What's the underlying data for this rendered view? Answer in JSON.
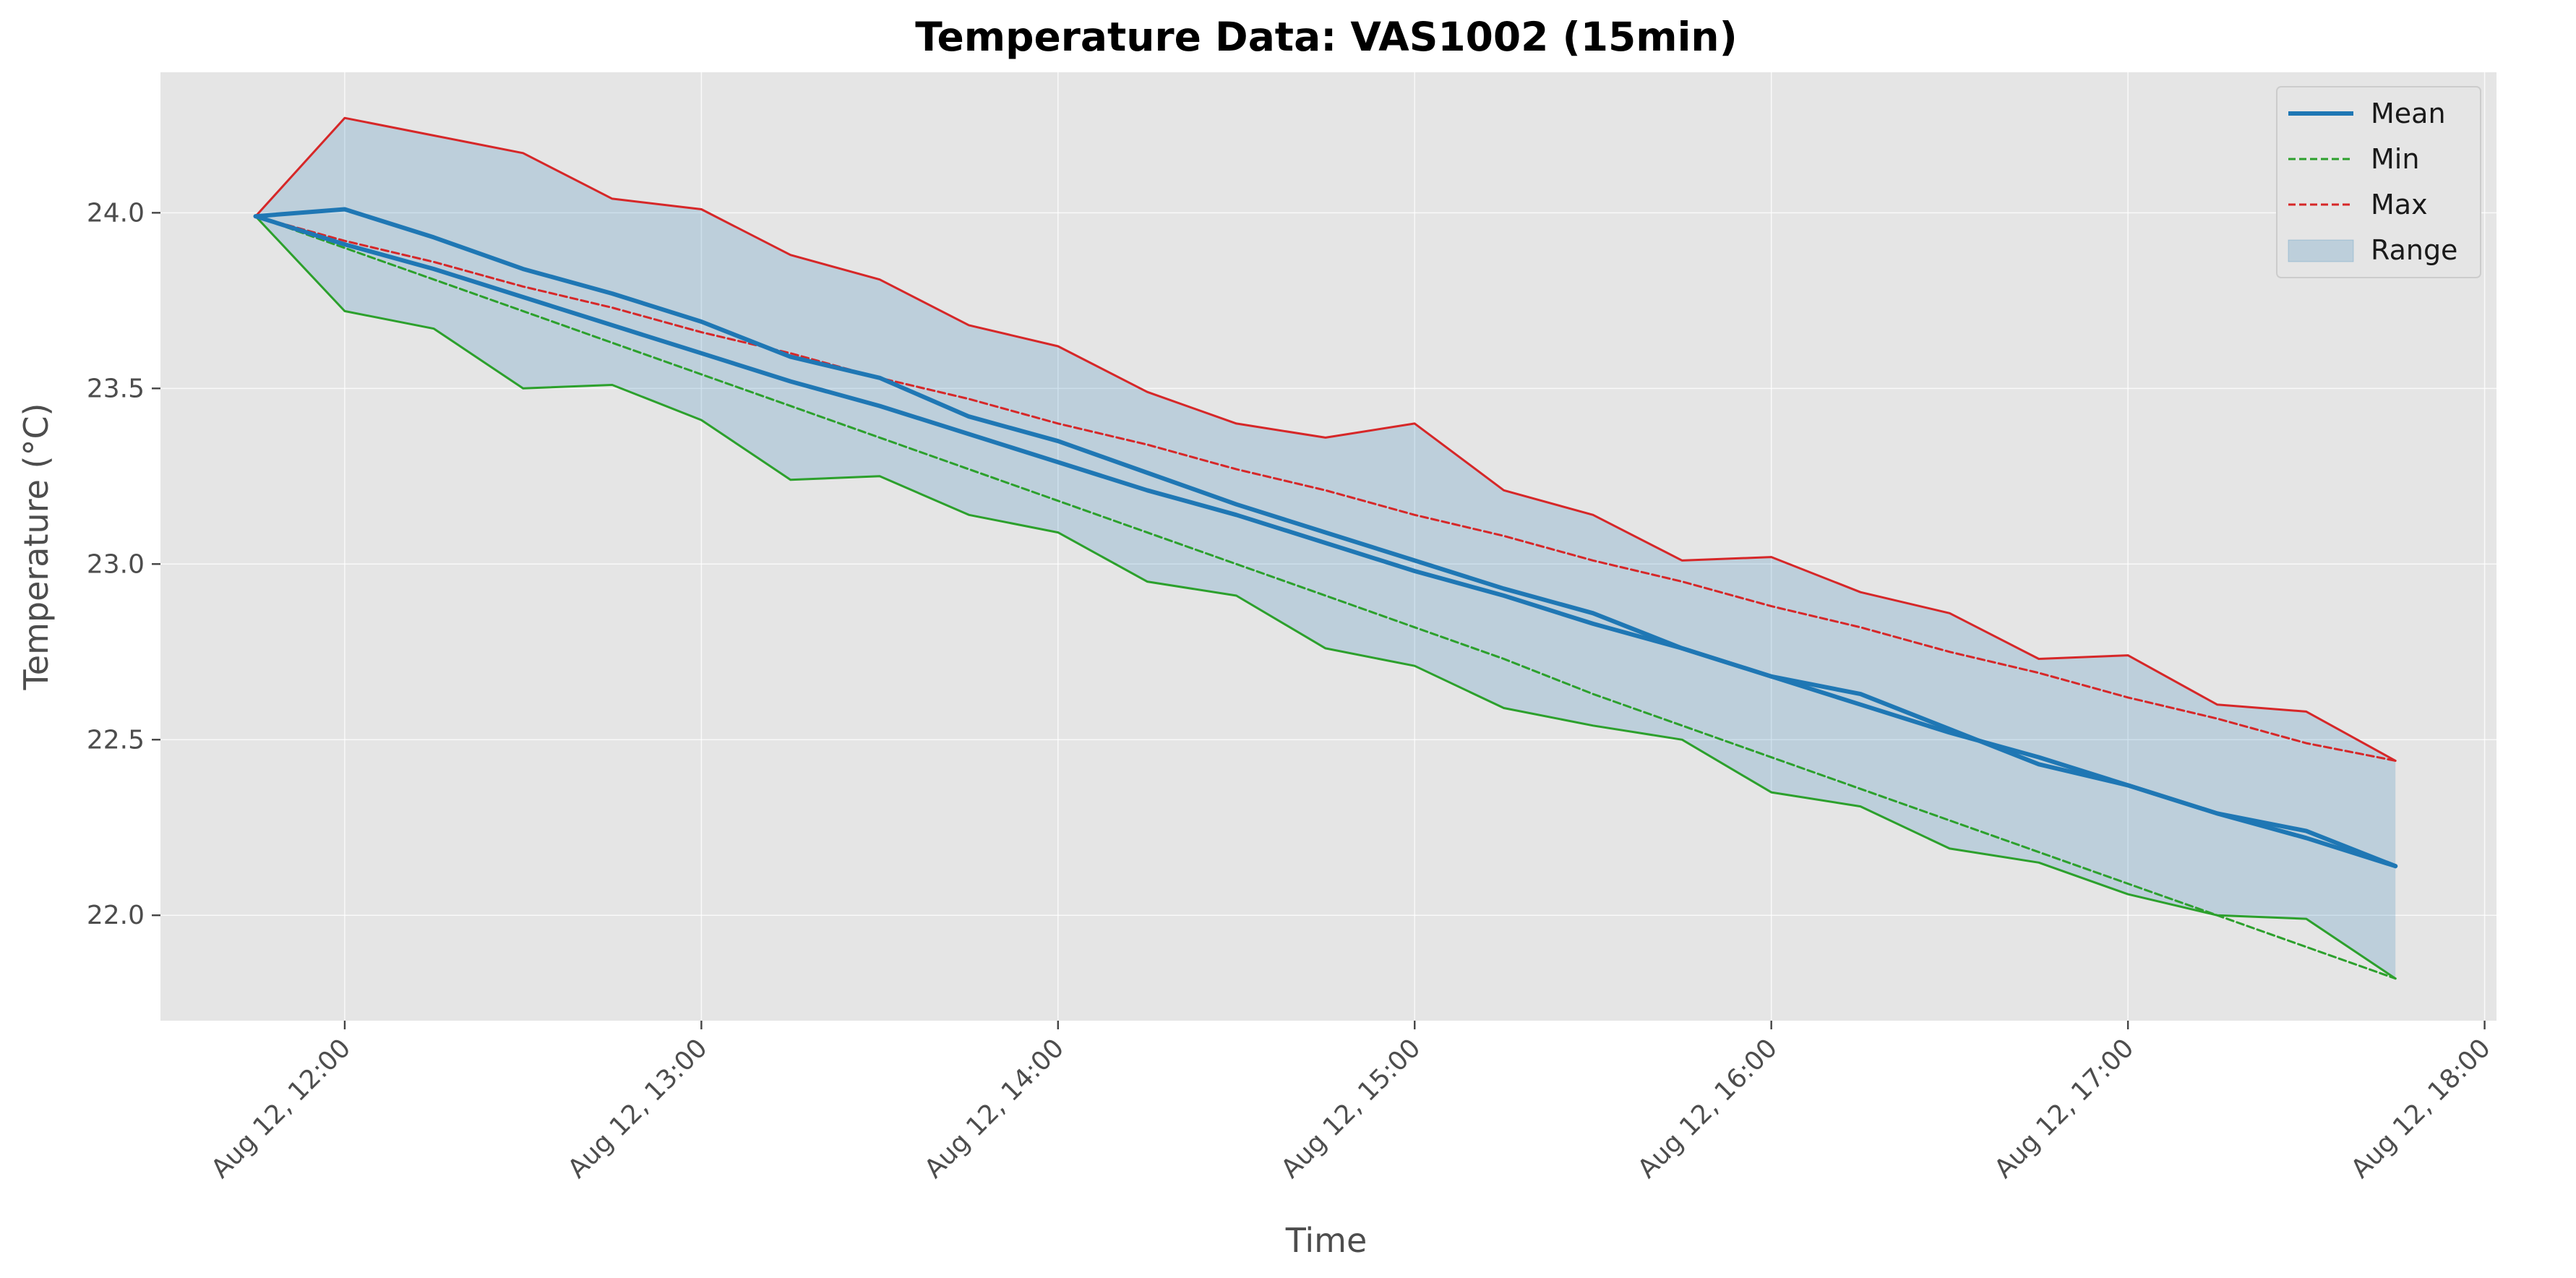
{
  "chart_data": {
    "type": "line",
    "title": "Temperature Data: VAS1002 (15min)",
    "xlabel": "Time",
    "ylabel": "Temperature (°C)",
    "x_ticks": [
      "Aug 12, 12:00",
      "Aug 12, 13:00",
      "Aug 12, 14:00",
      "Aug 12, 15:00",
      "Aug 12, 16:00",
      "Aug 12, 17:00",
      "Aug 12, 18:00"
    ],
    "y_ticks": [
      "22.0",
      "22.5",
      "23.0",
      "23.5",
      "24.0"
    ],
    "xlim": [
      "Aug 12, 11:29",
      "Aug 12, 18:02"
    ],
    "ylim": [
      21.7,
      24.4
    ],
    "grid": true,
    "legend_position": "top-right",
    "x": [
      "Aug 12, 11:45",
      "Aug 12, 12:00",
      "Aug 12, 12:15",
      "Aug 12, 12:30",
      "Aug 12, 12:45",
      "Aug 12, 13:00",
      "Aug 12, 13:15",
      "Aug 12, 13:30",
      "Aug 12, 13:45",
      "Aug 12, 14:00",
      "Aug 12, 14:15",
      "Aug 12, 14:30",
      "Aug 12, 14:45",
      "Aug 12, 15:00",
      "Aug 12, 15:15",
      "Aug 12, 15:30",
      "Aug 12, 15:45",
      "Aug 12, 16:00",
      "Aug 12, 16:15",
      "Aug 12, 16:30",
      "Aug 12, 16:45",
      "Aug 12, 17:00",
      "Aug 12, 17:15",
      "Aug 12, 17:30",
      "Aug 12, 17:45"
    ],
    "series": [
      {
        "name": "Mean",
        "style": "solid",
        "color": "#1f77b4",
        "values": [
          23.99,
          24.01,
          23.93,
          23.84,
          23.77,
          23.69,
          23.59,
          23.53,
          23.42,
          23.35,
          23.26,
          23.17,
          23.09,
          23.01,
          22.93,
          22.86,
          22.76,
          22.68,
          22.63,
          22.53,
          22.43,
          22.37,
          22.29,
          22.24,
          22.14
        ]
      },
      {
        "name": "Mean",
        "style": "solid",
        "color": "#1f77b4",
        "values": [
          23.99,
          23.91,
          23.84,
          23.76,
          23.68,
          23.6,
          23.52,
          23.45,
          23.37,
          23.29,
          23.21,
          23.14,
          23.06,
          22.98,
          22.91,
          22.83,
          22.76,
          22.68,
          22.6,
          22.52,
          22.45,
          22.37,
          22.29,
          22.22,
          22.14
        ]
      },
      {
        "name": "Min",
        "style": "solid",
        "color": "#2ca02c",
        "values": [
          23.99,
          23.72,
          23.67,
          23.5,
          23.51,
          23.41,
          23.24,
          23.25,
          23.14,
          23.09,
          22.95,
          22.91,
          22.76,
          22.71,
          22.59,
          22.54,
          22.5,
          22.35,
          22.31,
          22.19,
          22.15,
          22.06,
          22.0,
          21.99,
          21.82
        ]
      },
      {
        "name": "Min",
        "style": "dashed",
        "color": "#2ca02c",
        "values": [
          23.99,
          23.9,
          23.81,
          23.72,
          23.63,
          23.54,
          23.45,
          23.36,
          23.27,
          23.18,
          23.09,
          23.0,
          22.91,
          22.82,
          22.73,
          22.63,
          22.54,
          22.45,
          22.36,
          22.27,
          22.18,
          22.09,
          22.0,
          21.91,
          21.82
        ]
      },
      {
        "name": "Max",
        "style": "solid",
        "color": "#d62728",
        "values": [
          23.99,
          24.27,
          24.22,
          24.17,
          24.04,
          24.01,
          23.88,
          23.81,
          23.68,
          23.62,
          23.49,
          23.4,
          23.36,
          23.4,
          23.21,
          23.14,
          23.01,
          23.02,
          22.92,
          22.86,
          22.73,
          22.74,
          22.6,
          22.58,
          22.44
        ]
      },
      {
        "name": "Max",
        "style": "dashed",
        "color": "#d62728",
        "values": [
          23.99,
          23.92,
          23.86,
          23.79,
          23.73,
          23.66,
          23.6,
          23.53,
          23.47,
          23.4,
          23.34,
          23.27,
          23.21,
          23.14,
          23.08,
          23.01,
          22.95,
          22.88,
          22.82,
          22.75,
          22.69,
          22.62,
          22.56,
          22.49,
          22.44
        ]
      }
    ],
    "legend": [
      {
        "label": "Mean",
        "style": "solid",
        "color": "#1f77b4"
      },
      {
        "label": "Min",
        "style": "dashed",
        "color": "#2ca02c"
      },
      {
        "label": "Max",
        "style": "dashed",
        "color": "#d62728"
      },
      {
        "label": "Range",
        "style": "fill",
        "color": "#1f77b4"
      }
    ],
    "colors": {
      "range_fill": "#1f77b4",
      "plot_background": "#e5e5e5"
    }
  }
}
